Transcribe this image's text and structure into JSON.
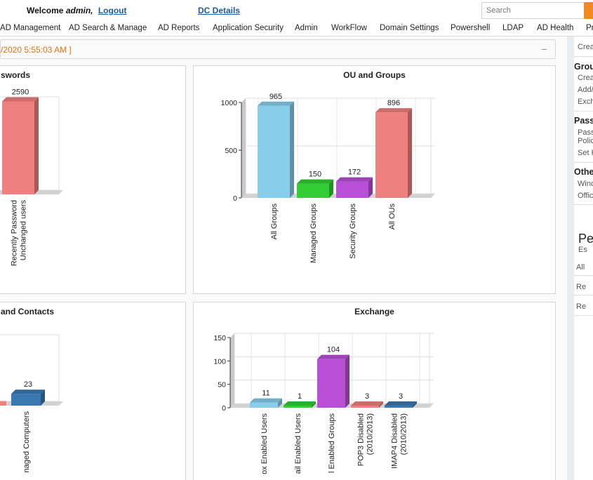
{
  "header": {
    "welcome_prefix": "Welcome",
    "user": "admin,",
    "logout": "Logout",
    "dc_details": "DC Details",
    "search_placeholder": "Search"
  },
  "nav": {
    "items": [
      "AD Management",
      "AD Search & Manage",
      "AD Reports",
      "Application Security",
      "Admin",
      "WorkFlow",
      "Domain Settings",
      "Powershell",
      "LDAP",
      "AD Health",
      "Pr"
    ]
  },
  "date_bar": {
    "text": "/2020 5:55:03 AM ]",
    "collapse": "–"
  },
  "panels": {
    "passwords": {
      "title": "swords"
    },
    "ou_groups": {
      "title": "OU and Groups"
    },
    "contacts": {
      "title": "and Contacts"
    },
    "exchange": {
      "title": "Exchange"
    }
  },
  "chart_data": [
    {
      "type": "bar",
      "title": "swords",
      "categories": [
        "Recently Password Unchanged users"
      ],
      "values": [
        2590
      ],
      "colors": [
        "#f08080"
      ]
    },
    {
      "type": "bar",
      "title": "OU and Groups",
      "categories": [
        "All Groups",
        "Managed Groups",
        "Security Groups",
        "All OUs"
      ],
      "values": [
        965,
        150,
        172,
        896
      ],
      "colors": [
        "#87ceeb",
        "#32cd32",
        "#b94fd6",
        "#f08080"
      ],
      "yticks": [
        0,
        500,
        1000
      ],
      "ylim": [
        0,
        1000
      ]
    },
    {
      "type": "bar",
      "title": "and Contacts",
      "categories": [
        "naged Computers"
      ],
      "values": [
        23
      ],
      "colors": [
        "#3a78b0"
      ]
    },
    {
      "type": "bar",
      "title": "Exchange",
      "categories": [
        "ox Enabled Users",
        "ail Enabled Users",
        "l Enabled Groups",
        "POP3 Disabled (2010/2013)",
        "IMAP4 Disabled (2010/2013)"
      ],
      "values": [
        11,
        1,
        104,
        3,
        3
      ],
      "colors": [
        "#87ceeb",
        "#32cd32",
        "#b94fd6",
        "#f08080",
        "#3a78b0"
      ],
      "yticks": [
        0,
        50,
        100,
        150
      ],
      "ylim": [
        0,
        150
      ]
    }
  ],
  "sidebar": {
    "item_create_top": "Crea",
    "groups_head": "Grou",
    "groups_items": [
      "Crea",
      "Add/",
      "Exch"
    ],
    "pass_head": "Pass",
    "pass_items": [
      "Pass",
      "Polic",
      "Set F"
    ],
    "other_head": "Othe",
    "other_items": [
      "Wind",
      "Offic"
    ],
    "big": "Pe",
    "sub": "Es",
    "links": [
      "All",
      "Re",
      "Re"
    ]
  }
}
